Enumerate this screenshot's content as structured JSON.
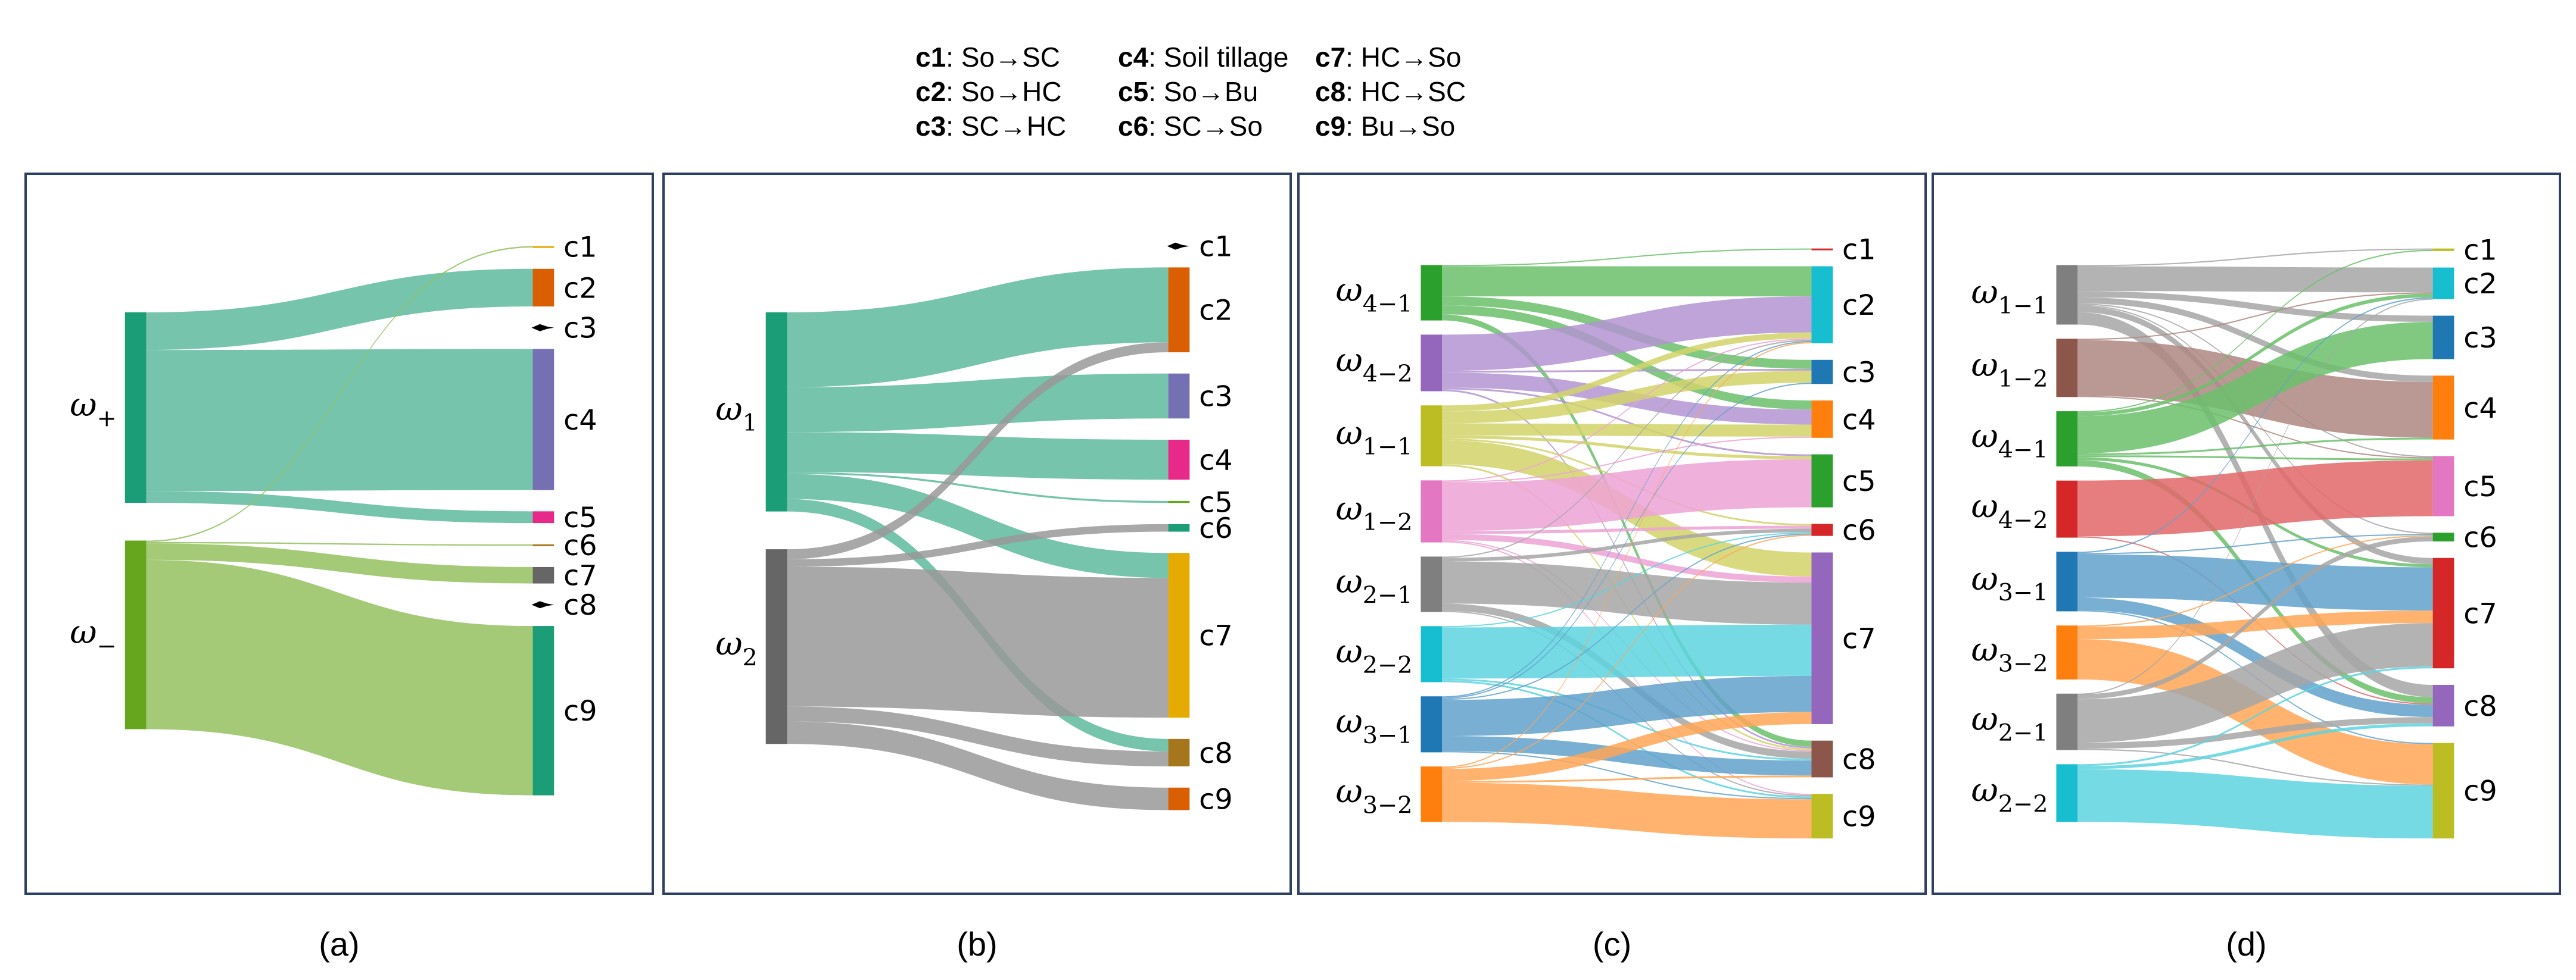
{
  "legend": [
    {
      "key": "c1",
      "desc": "So→SC"
    },
    {
      "key": "c2",
      "desc": "So→HC"
    },
    {
      "key": "c3",
      "desc": "SC→HC"
    },
    {
      "key": "c4",
      "desc": "Soil tillage"
    },
    {
      "key": "c5",
      "desc": "So→Bu"
    },
    {
      "key": "c6",
      "desc": "SC→So"
    },
    {
      "key": "c7",
      "desc": "HC→So"
    },
    {
      "key": "c8",
      "desc": "HC→SC"
    },
    {
      "key": "c9",
      "desc": "Bu→So"
    }
  ],
  "chart_data": [
    {
      "type": "sankey",
      "caption": "(a)",
      "sources": [
        {
          "sym": "ω",
          "sub": "+",
          "color": "#1b9e77",
          "link_color": "#5fba9f"
        },
        {
          "sym": "ω",
          "sub": "−",
          "color": "#66a61e",
          "link_color": "#94c160"
        }
      ],
      "targets": [
        {
          "label": "c1",
          "color": "#e6ab02"
        },
        {
          "label": "c2",
          "color": "#d95f02"
        },
        {
          "label": "c3",
          "color": "#000000"
        },
        {
          "label": "c4",
          "color": "#7570b3"
        },
        {
          "label": "c5",
          "color": "#e7298a"
        },
        {
          "label": "c6",
          "color": "#a6761d"
        },
        {
          "label": "c7",
          "color": "#666666"
        },
        {
          "label": "c8",
          "color": "#000000"
        },
        {
          "label": "c9",
          "color": "#1b9e77"
        }
      ],
      "links": [
        [
          0,
          1,
          8
        ],
        [
          0,
          3,
          30
        ],
        [
          0,
          4,
          2.5
        ],
        [
          1,
          0,
          0.3
        ],
        [
          1,
          5,
          0.3
        ],
        [
          1,
          6,
          3.5
        ],
        [
          1,
          8,
          36
        ]
      ]
    },
    {
      "type": "sankey",
      "caption": "(b)",
      "sources": [
        {
          "sym": "ω",
          "sub": "1",
          "color": "#1b9e77",
          "link_color": "#5fba9f"
        },
        {
          "sym": "ω",
          "sub": "2",
          "color": "#666666",
          "link_color": "#999999"
        }
      ],
      "targets": [
        {
          "label": "c1",
          "color": "#000000"
        },
        {
          "label": "c2",
          "color": "#d95f02"
        },
        {
          "label": "c3",
          "color": "#7570b3"
        },
        {
          "label": "c4",
          "color": "#e7298a"
        },
        {
          "label": "c5",
          "color": "#66a61e"
        },
        {
          "label": "c6",
          "color": "#1b9e77"
        },
        {
          "label": "c7",
          "color": "#e6ab02"
        },
        {
          "label": "c8",
          "color": "#a6761d"
        },
        {
          "label": "c9",
          "color": "#d95f02"
        }
      ],
      "links": [
        [
          0,
          1,
          15
        ],
        [
          0,
          2,
          9
        ],
        [
          0,
          3,
          8
        ],
        [
          0,
          4,
          0.4
        ],
        [
          0,
          6,
          5
        ],
        [
          0,
          7,
          2.5
        ],
        [
          1,
          1,
          2
        ],
        [
          1,
          5,
          1.5
        ],
        [
          1,
          6,
          28
        ],
        [
          1,
          7,
          3
        ],
        [
          1,
          8,
          4.5
        ]
      ]
    },
    {
      "type": "sankey",
      "caption": "(c)",
      "sources": [
        {
          "sym": "ω",
          "sub": "4−1",
          "color": "#2ca02c",
          "link_color": "#6bbf6b"
        },
        {
          "sym": "ω",
          "sub": "4−2",
          "color": "#9467bd",
          "link_color": "#b394d1"
        },
        {
          "sym": "ω",
          "sub": "1−1",
          "color": "#bcbd22",
          "link_color": "#d2d36a"
        },
        {
          "sym": "ω",
          "sub": "1−2",
          "color": "#e377c2",
          "link_color": "#eda2d6"
        },
        {
          "sym": "ω",
          "sub": "2−1",
          "color": "#7f7f7f",
          "link_color": "#a6a6a6"
        },
        {
          "sym": "ω",
          "sub": "2−2",
          "color": "#17becf",
          "link_color": "#5dd3df"
        },
        {
          "sym": "ω",
          "sub": "3−1",
          "color": "#1f77b4",
          "link_color": "#62a1cb"
        },
        {
          "sym": "ω",
          "sub": "3−2",
          "color": "#ff7f0e",
          "link_color": "#ffa656"
        }
      ],
      "targets": [
        {
          "label": "c1",
          "color": "#d62728"
        },
        {
          "label": "c2",
          "color": "#17becf"
        },
        {
          "label": "c3",
          "color": "#1f77b4"
        },
        {
          "label": "c4",
          "color": "#ff7f0e"
        },
        {
          "label": "c5",
          "color": "#2ca02c"
        },
        {
          "label": "c6",
          "color": "#d62728"
        },
        {
          "label": "c7",
          "color": "#9467bd"
        },
        {
          "label": "c8",
          "color": "#8c564b"
        },
        {
          "label": "c9",
          "color": "#bcbd22"
        }
      ],
      "links": [
        [
          0,
          0,
          0.2
        ],
        [
          0,
          1,
          5
        ],
        [
          0,
          2,
          1.5
        ],
        [
          0,
          3,
          1.5
        ],
        [
          0,
          7,
          1
        ],
        [
          1,
          1,
          6
        ],
        [
          1,
          2,
          0.3
        ],
        [
          1,
          3,
          2.5
        ],
        [
          1,
          4,
          0.3
        ],
        [
          1,
          7,
          0.3
        ],
        [
          2,
          1,
          1
        ],
        [
          2,
          2,
          2
        ],
        [
          2,
          3,
          2
        ],
        [
          2,
          4,
          0.5
        ],
        [
          2,
          5,
          0.3
        ],
        [
          2,
          6,
          4
        ],
        [
          2,
          7,
          0.3
        ],
        [
          3,
          1,
          0.2
        ],
        [
          3,
          3,
          0.2
        ],
        [
          3,
          4,
          8
        ],
        [
          3,
          5,
          0.5
        ],
        [
          3,
          6,
          1
        ],
        [
          3,
          7,
          0.2
        ],
        [
          3,
          8,
          0.2
        ],
        [
          4,
          1,
          0.2
        ],
        [
          4,
          5,
          0.6
        ],
        [
          4,
          6,
          7
        ],
        [
          4,
          7,
          1.2
        ],
        [
          4,
          8,
          0.2
        ],
        [
          5,
          5,
          0.2
        ],
        [
          5,
          6,
          8.5
        ],
        [
          5,
          7,
          0.3
        ],
        [
          5,
          8,
          0.3
        ],
        [
          6,
          1,
          0.2
        ],
        [
          6,
          2,
          0.2
        ],
        [
          6,
          5,
          0.2
        ],
        [
          6,
          6,
          6
        ],
        [
          6,
          7,
          2.5
        ],
        [
          6,
          8,
          0.2
        ],
        [
          7,
          1,
          0.2
        ],
        [
          7,
          5,
          0.2
        ],
        [
          7,
          6,
          2
        ],
        [
          7,
          7,
          0.3
        ],
        [
          7,
          8,
          6.5
        ]
      ]
    },
    {
      "type": "sankey",
      "caption": "(d)",
      "sources": [
        {
          "sym": "ω",
          "sub": "1−1",
          "color": "#7f7f7f",
          "link_color": "#a6a6a6"
        },
        {
          "sym": "ω",
          "sub": "1−2",
          "color": "#8c564b",
          "link_color": "#ae8781"
        },
        {
          "sym": "ω",
          "sub": "4−1",
          "color": "#2ca02c",
          "link_color": "#6bbf6b"
        },
        {
          "sym": "ω",
          "sub": "4−2",
          "color": "#d62728",
          "link_color": "#e2676a"
        },
        {
          "sym": "ω",
          "sub": "3−1",
          "color": "#1f77b4",
          "link_color": "#62a1cb"
        },
        {
          "sym": "ω",
          "sub": "3−2",
          "color": "#ff7f0e",
          "link_color": "#ffa656"
        },
        {
          "sym": "ω",
          "sub": "2−1",
          "color": "#7f7f7f",
          "link_color": "#a6a6a6"
        },
        {
          "sym": "ω",
          "sub": "2−2",
          "color": "#17becf",
          "link_color": "#5dd3df"
        }
      ],
      "targets": [
        {
          "label": "c1",
          "color": "#bcbd22"
        },
        {
          "label": "c2",
          "color": "#17becf"
        },
        {
          "label": "c3",
          "color": "#1f77b4"
        },
        {
          "label": "c4",
          "color": "#ff7f0e"
        },
        {
          "label": "c5",
          "color": "#e377c2"
        },
        {
          "label": "c6",
          "color": "#2ca02c"
        },
        {
          "label": "c7",
          "color": "#d62728"
        },
        {
          "label": "c8",
          "color": "#9467bd"
        },
        {
          "label": "c9",
          "color": "#bcbd22"
        }
      ],
      "links": [
        [
          0,
          0,
          0.2
        ],
        [
          0,
          1,
          4
        ],
        [
          0,
          2,
          1
        ],
        [
          0,
          3,
          1
        ],
        [
          0,
          4,
          0.2
        ],
        [
          0,
          5,
          0.2
        ],
        [
          0,
          6,
          1
        ],
        [
          0,
          7,
          2
        ],
        [
          1,
          1,
          0.2
        ],
        [
          1,
          3,
          9
        ],
        [
          1,
          4,
          0.2
        ],
        [
          2,
          0,
          0.2
        ],
        [
          2,
          1,
          0.6
        ],
        [
          2,
          2,
          6
        ],
        [
          2,
          3,
          0.3
        ],
        [
          2,
          4,
          0.3
        ],
        [
          2,
          6,
          0.5
        ],
        [
          2,
          7,
          1
        ],
        [
          3,
          4,
          9
        ],
        [
          3,
          7,
          0.2
        ],
        [
          4,
          1,
          0.2
        ],
        [
          4,
          5,
          0.2
        ],
        [
          4,
          6,
          7
        ],
        [
          4,
          7,
          2
        ],
        [
          4,
          8,
          0.2
        ],
        [
          5,
          5,
          0.2
        ],
        [
          5,
          6,
          2
        ],
        [
          5,
          8,
          6.5
        ],
        [
          6,
          1,
          0.1
        ],
        [
          6,
          5,
          0.8
        ],
        [
          6,
          6,
          7
        ],
        [
          6,
          7,
          1
        ],
        [
          6,
          8,
          0.2
        ],
        [
          7,
          6,
          0.3
        ],
        [
          7,
          7,
          0.5
        ],
        [
          7,
          8,
          8.5
        ]
      ]
    }
  ]
}
